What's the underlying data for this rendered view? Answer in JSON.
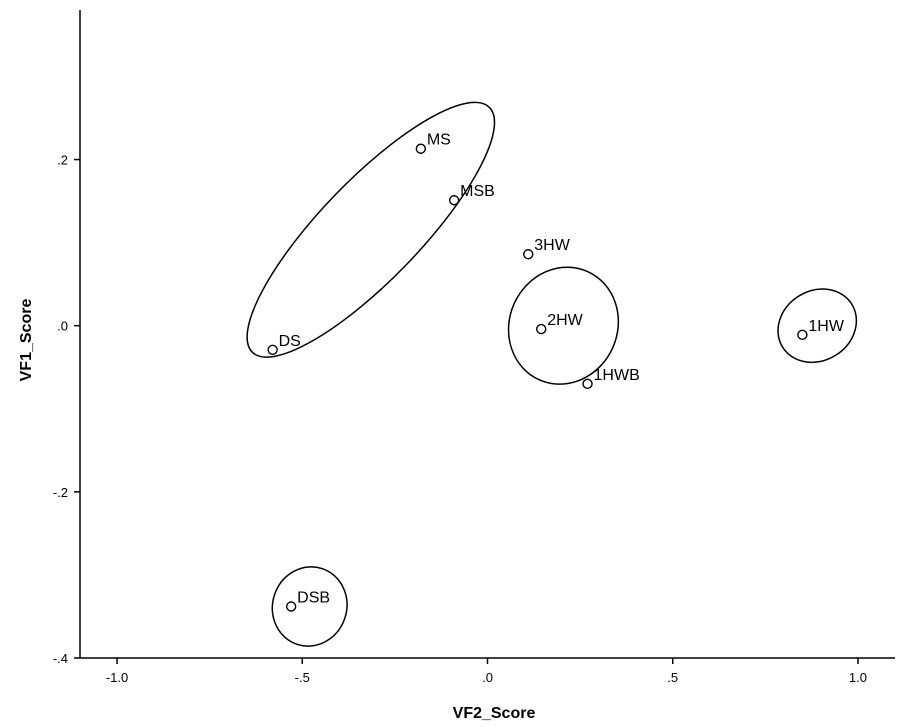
{
  "chart_data": {
    "type": "scatter",
    "xlabel": "VF2_Score",
    "ylabel": "VF1_Score",
    "xlim": [
      -1.1,
      1.1
    ],
    "ylim": [
      -0.4,
      0.38
    ],
    "x_ticks": [
      {
        "value": -1.0,
        "label": "-1.0"
      },
      {
        "value": -0.5,
        "label": "-.5"
      },
      {
        "value": 0.0,
        "label": ".0"
      },
      {
        "value": 0.5,
        "label": ".5"
      },
      {
        "value": 1.0,
        "label": "1.0"
      }
    ],
    "y_ticks": [
      {
        "value": 0.2,
        "label": ".2"
      },
      {
        "value": 0.0,
        "label": ".0"
      },
      {
        "value": -0.2,
        "label": "-.2"
      },
      {
        "value": -0.4,
        "label": "-.4"
      }
    ],
    "points": [
      {
        "label": "MS",
        "x": -0.18,
        "y": 0.213
      },
      {
        "label": "MSB",
        "x": -0.09,
        "y": 0.151
      },
      {
        "label": "DS",
        "x": -0.58,
        "y": -0.029
      },
      {
        "label": "3HW",
        "x": 0.11,
        "y": 0.086
      },
      {
        "label": "2HW",
        "x": 0.145,
        "y": -0.004
      },
      {
        "label": "1HWB",
        "x": 0.27,
        "y": -0.07
      },
      {
        "label": "1HW",
        "x": 0.85,
        "y": -0.011
      },
      {
        "label": "DSB",
        "x": -0.53,
        "y": -0.338
      }
    ],
    "clusters": [
      {
        "members": [
          "MS",
          "MSB",
          "DS"
        ],
        "cx": -0.315,
        "cy": 0.1155,
        "rx": 0.46,
        "ry": 0.06,
        "angle": 46
      },
      {
        "members": [
          "3HW",
          "2HW",
          "1HWB"
        ],
        "cx": 0.205,
        "cy": 0.0,
        "rx": 0.16,
        "ry": 0.065,
        "angle": 66
      },
      {
        "members": [
          "1HW"
        ],
        "cx": 0.89,
        "cy": 0.0,
        "rx": 0.11,
        "ry": 0.042,
        "angle": 32
      },
      {
        "members": [
          "DSB"
        ],
        "cx": -0.48,
        "cy": -0.338,
        "rx": 0.1,
        "ry": 0.048,
        "angle": -18
      }
    ],
    "grid": false,
    "legend": "none"
  }
}
